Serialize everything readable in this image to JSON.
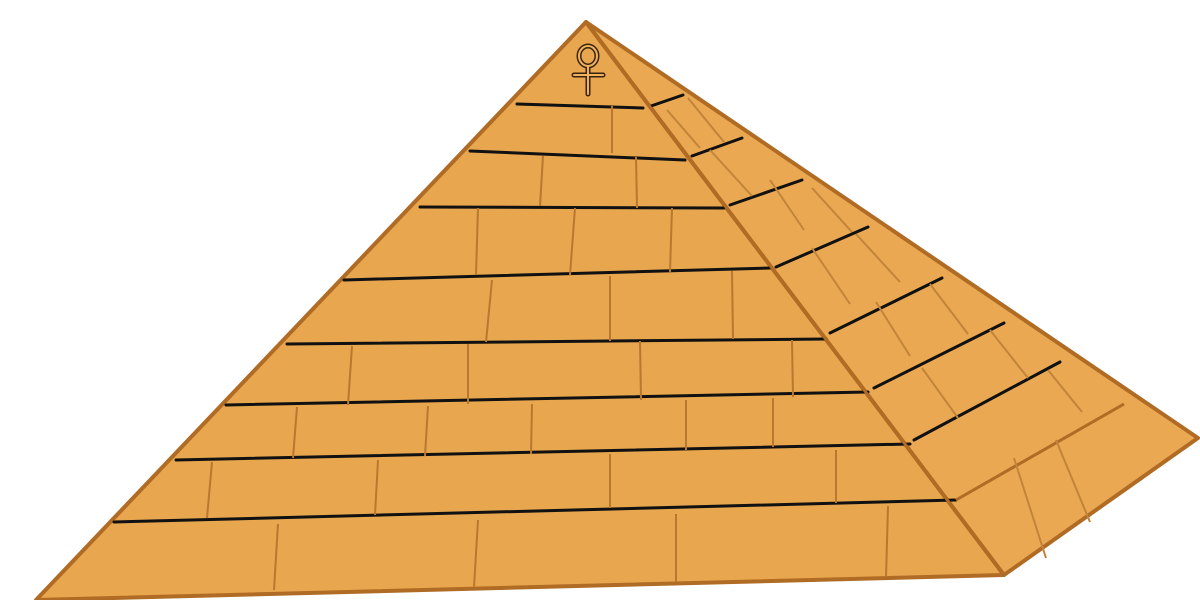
{
  "scene": {
    "subject": "pyramid",
    "symbol": "ankh-icon",
    "colors": {
      "background": "#ffffff",
      "stone_front": "#E8A64E",
      "stone_side": "#E9A851",
      "outline": "#B06B24",
      "course_line": "#111111",
      "block_seam": "#B8782F"
    }
  }
}
